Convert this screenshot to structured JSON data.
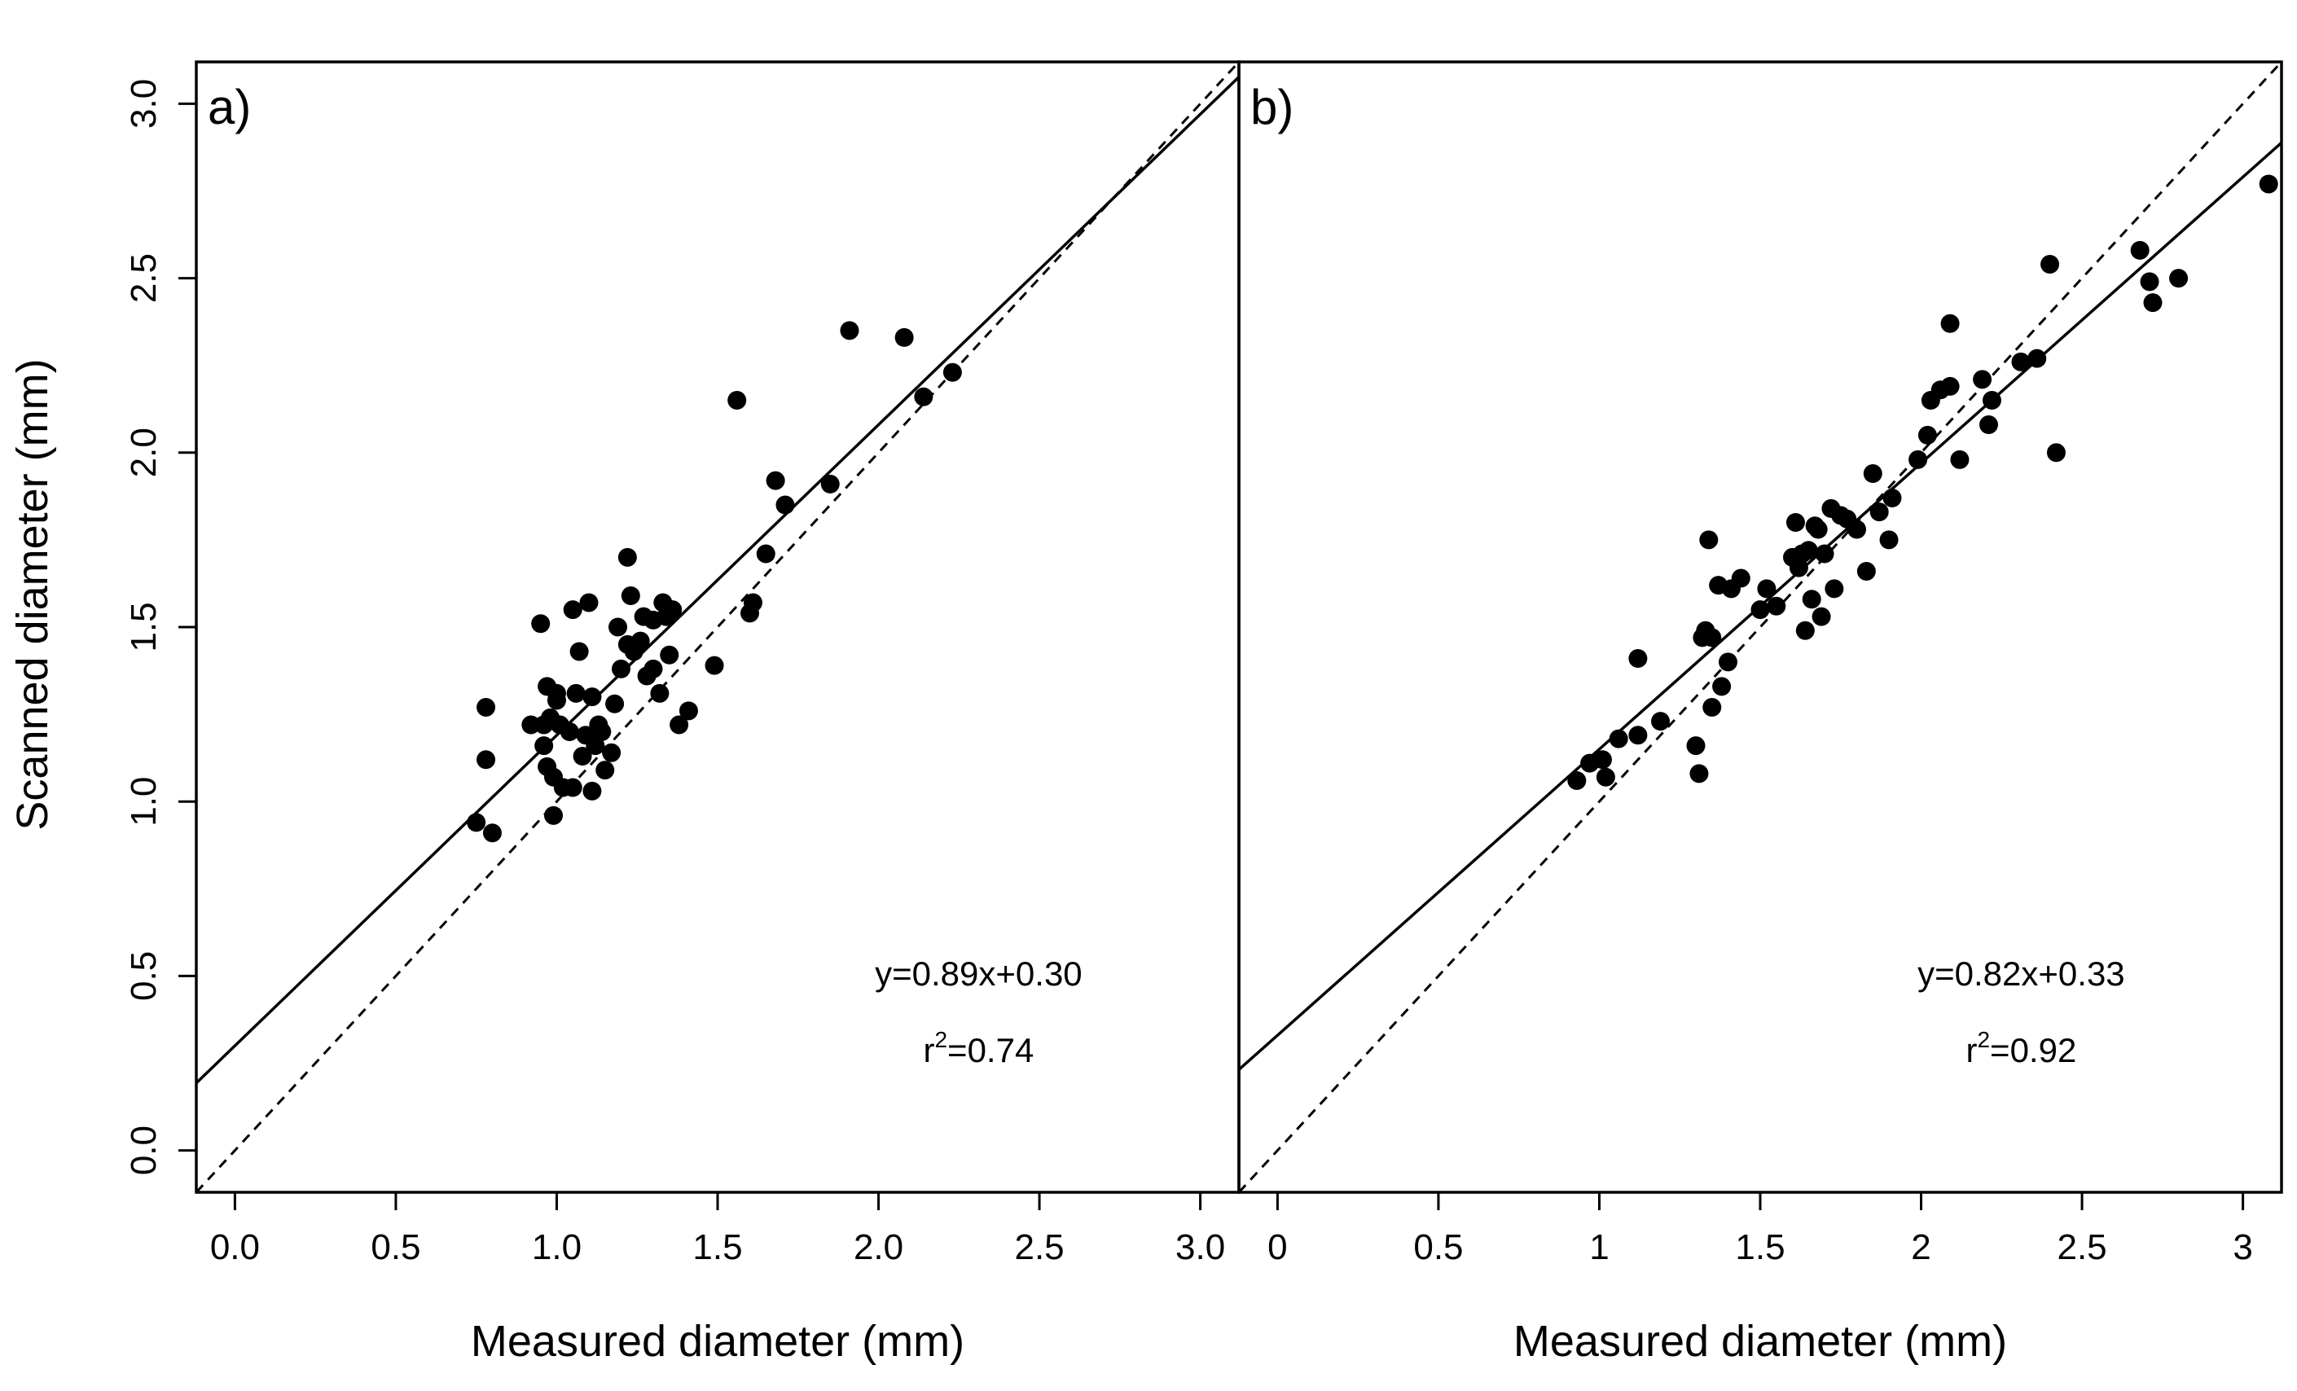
{
  "figure": {
    "ylabel": "Scanned diameter (mm)"
  },
  "chart_data": [
    {
      "type": "scatter",
      "panel_label": "a)",
      "xlabel": "Measured diameter (mm)",
      "ylabel": "Scanned diameter (mm)",
      "xlim": [
        -0.12,
        3.12
      ],
      "ylim": [
        -0.12,
        3.12
      ],
      "xticks": [
        0,
        0.5,
        1,
        1.5,
        2,
        2.5,
        3
      ],
      "xtick_labels": [
        "0.0",
        "0.5",
        "1.0",
        "1.5",
        "2.0",
        "2.5",
        "3.0"
      ],
      "yticks": [
        0,
        0.5,
        1,
        1.5,
        2,
        2.5,
        3
      ],
      "ytick_labels": [
        "0.0",
        "0.5",
        "1.0",
        "1.5",
        "2.0",
        "2.5",
        "3.0"
      ],
      "grid": false,
      "regression": {
        "slope": 0.89,
        "intercept": 0.3,
        "equation": "y=0.89x+0.30",
        "r2_prefix": "r",
        "r2_sup": "2",
        "r2_value": "=0.74"
      },
      "reference_line": {
        "slope": 1,
        "intercept": 0,
        "style": "dashed"
      },
      "points": [
        [
          0.75,
          0.94
        ],
        [
          0.78,
          1.27
        ],
        [
          0.78,
          1.12
        ],
        [
          0.8,
          0.91
        ],
        [
          0.92,
          1.22
        ],
        [
          0.95,
          1.51
        ],
        [
          0.96,
          1.16
        ],
        [
          0.96,
          1.22
        ],
        [
          0.97,
          1.1
        ],
        [
          0.97,
          1.33
        ],
        [
          0.98,
          1.24
        ],
        [
          0.99,
          0.96
        ],
        [
          0.99,
          1.07
        ],
        [
          1.0,
          1.29
        ],
        [
          1.0,
          1.31
        ],
        [
          1.01,
          1.22
        ],
        [
          1.02,
          1.04
        ],
        [
          1.04,
          1.2
        ],
        [
          1.05,
          1.55
        ],
        [
          1.05,
          1.04
        ],
        [
          1.06,
          1.31
        ],
        [
          1.07,
          1.43
        ],
        [
          1.08,
          1.13
        ],
        [
          1.09,
          1.19
        ],
        [
          1.1,
          1.57
        ],
        [
          1.11,
          1.03
        ],
        [
          1.11,
          1.3
        ],
        [
          1.12,
          1.16
        ],
        [
          1.13,
          1.22
        ],
        [
          1.14,
          1.2
        ],
        [
          1.15,
          1.09
        ],
        [
          1.17,
          1.14
        ],
        [
          1.18,
          1.28
        ],
        [
          1.19,
          1.5
        ],
        [
          1.2,
          1.38
        ],
        [
          1.22,
          1.7
        ],
        [
          1.22,
          1.45
        ],
        [
          1.23,
          1.59
        ],
        [
          1.24,
          1.43
        ],
        [
          1.26,
          1.46
        ],
        [
          1.27,
          1.53
        ],
        [
          1.28,
          1.36
        ],
        [
          1.3,
          1.52
        ],
        [
          1.3,
          1.38
        ],
        [
          1.32,
          1.31
        ],
        [
          1.33,
          1.57
        ],
        [
          1.34,
          1.53
        ],
        [
          1.35,
          1.42
        ],
        [
          1.36,
          1.55
        ],
        [
          1.38,
          1.22
        ],
        [
          1.41,
          1.26
        ],
        [
          1.49,
          1.39
        ],
        [
          1.56,
          2.15
        ],
        [
          1.6,
          1.54
        ],
        [
          1.61,
          1.57
        ],
        [
          1.65,
          1.71
        ],
        [
          1.68,
          1.92
        ],
        [
          1.71,
          1.85
        ],
        [
          1.85,
          1.91
        ],
        [
          1.91,
          2.35
        ],
        [
          2.08,
          2.33
        ],
        [
          2.14,
          2.16
        ],
        [
          2.23,
          2.23
        ]
      ]
    },
    {
      "type": "scatter",
      "panel_label": "b)",
      "xlabel": "Measured diameter (mm)",
      "ylabel": "",
      "xlim": [
        -0.12,
        3.12
      ],
      "ylim": [
        -0.12,
        3.12
      ],
      "xticks": [
        0,
        0.5,
        1,
        1.5,
        2,
        2.5,
        3
      ],
      "xtick_labels": [
        "0",
        "0.5",
        "1",
        "1.5",
        "2",
        "2.5",
        "3"
      ],
      "yticks": [],
      "ytick_labels": [],
      "grid": false,
      "regression": {
        "slope": 0.82,
        "intercept": 0.33,
        "equation": "y=0.82x+0.33",
        "r2_prefix": "r",
        "r2_sup": "2",
        "r2_value": "=0.92"
      },
      "reference_line": {
        "slope": 1,
        "intercept": 0,
        "style": "dashed"
      },
      "points": [
        [
          0.93,
          1.06
        ],
        [
          0.97,
          1.11
        ],
        [
          1.01,
          1.12
        ],
        [
          1.02,
          1.07
        ],
        [
          1.06,
          1.18
        ],
        [
          1.12,
          1.41
        ],
        [
          1.12,
          1.19
        ],
        [
          1.19,
          1.23
        ],
        [
          1.3,
          1.16
        ],
        [
          1.31,
          1.08
        ],
        [
          1.32,
          1.47
        ],
        [
          1.33,
          1.49
        ],
        [
          1.34,
          1.75
        ],
        [
          1.35,
          1.47
        ],
        [
          1.35,
          1.27
        ],
        [
          1.37,
          1.62
        ],
        [
          1.38,
          1.33
        ],
        [
          1.4,
          1.4
        ],
        [
          1.41,
          1.61
        ],
        [
          1.44,
          1.64
        ],
        [
          1.5,
          1.55
        ],
        [
          1.52,
          1.61
        ],
        [
          1.55,
          1.56
        ],
        [
          1.6,
          1.7
        ],
        [
          1.61,
          1.8
        ],
        [
          1.62,
          1.67
        ],
        [
          1.63,
          1.71
        ],
        [
          1.64,
          1.49
        ],
        [
          1.65,
          1.72
        ],
        [
          1.66,
          1.58
        ],
        [
          1.67,
          1.79
        ],
        [
          1.68,
          1.78
        ],
        [
          1.69,
          1.53
        ],
        [
          1.7,
          1.71
        ],
        [
          1.72,
          1.84
        ],
        [
          1.73,
          1.61
        ],
        [
          1.75,
          1.82
        ],
        [
          1.77,
          1.81
        ],
        [
          1.8,
          1.78
        ],
        [
          1.83,
          1.66
        ],
        [
          1.85,
          1.94
        ],
        [
          1.87,
          1.83
        ],
        [
          1.9,
          1.75
        ],
        [
          1.91,
          1.87
        ],
        [
          1.99,
          1.98
        ],
        [
          2.02,
          2.05
        ],
        [
          2.03,
          2.15
        ],
        [
          2.06,
          2.18
        ],
        [
          2.09,
          2.19
        ],
        [
          2.09,
          2.37
        ],
        [
          2.12,
          1.98
        ],
        [
          2.19,
          2.21
        ],
        [
          2.21,
          2.08
        ],
        [
          2.22,
          2.15
        ],
        [
          2.31,
          2.26
        ],
        [
          2.36,
          2.27
        ],
        [
          2.4,
          2.54
        ],
        [
          2.42,
          2.0
        ],
        [
          2.68,
          2.58
        ],
        [
          2.71,
          2.49
        ],
        [
          2.72,
          2.43
        ],
        [
          2.8,
          2.5
        ],
        [
          3.08,
          2.77
        ]
      ]
    }
  ]
}
